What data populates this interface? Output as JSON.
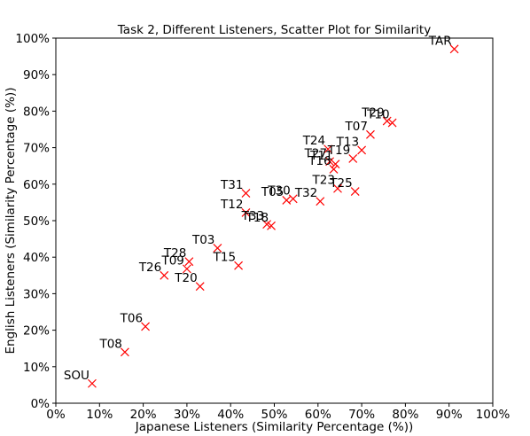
{
  "chart_data": {
    "type": "scatter",
    "title": "Task 2, Different Listeners, Scatter Plot for Similarity",
    "xlabel": "Japanese Listeners (Similarity Percentage (%))",
    "ylabel": "English Listeners (Similarity Percentage (%))",
    "xlim": [
      0,
      100
    ],
    "ylim": [
      0,
      100
    ],
    "xticks": [
      "0%",
      "10%",
      "20%",
      "30%",
      "40%",
      "50%",
      "60%",
      "70%",
      "80%",
      "90%",
      "100%"
    ],
    "yticks": [
      "0%",
      "10%",
      "20%",
      "30%",
      "40%",
      "50%",
      "60%",
      "70%",
      "80%",
      "90%",
      "100%"
    ],
    "marker": "x",
    "marker_color": "#ff0000",
    "grid": false,
    "points": [
      {
        "label": "TAR",
        "x": 91.2,
        "y": 97.0
      },
      {
        "label": "T29",
        "x": 75.8,
        "y": 77.3
      },
      {
        "label": "T10",
        "x": 77.0,
        "y": 76.8
      },
      {
        "label": "T07",
        "x": 72.0,
        "y": 73.6
      },
      {
        "label": "T13",
        "x": 70.0,
        "y": 69.3
      },
      {
        "label": "T24",
        "x": 62.3,
        "y": 69.6
      },
      {
        "label": "T19",
        "x": 68.0,
        "y": 67.0
      },
      {
        "label": "T27",
        "x": 62.7,
        "y": 66.2
      },
      {
        "label": "T11",
        "x": 64.0,
        "y": 65.5
      },
      {
        "label": "T16",
        "x": 63.6,
        "y": 64.1
      },
      {
        "label": "T23",
        "x": 64.5,
        "y": 58.8
      },
      {
        "label": "T25",
        "x": 68.5,
        "y": 58.0
      },
      {
        "label": "T31",
        "x": 43.5,
        "y": 57.5
      },
      {
        "label": "T32",
        "x": 60.5,
        "y": 55.3
      },
      {
        "label": "T30",
        "x": 54.3,
        "y": 56.0
      },
      {
        "label": "T05",
        "x": 52.8,
        "y": 55.6
      },
      {
        "label": "T12",
        "x": 43.5,
        "y": 52.2
      },
      {
        "label": "T33",
        "x": 48.3,
        "y": 49.0
      },
      {
        "label": "T18",
        "x": 49.3,
        "y": 48.6
      },
      {
        "label": "T03",
        "x": 37.0,
        "y": 42.5
      },
      {
        "label": "T15",
        "x": 41.8,
        "y": 37.7
      },
      {
        "label": "T28",
        "x": 30.5,
        "y": 38.8
      },
      {
        "label": "T09",
        "x": 30.0,
        "y": 36.8
      },
      {
        "label": "T26",
        "x": 24.8,
        "y": 35.0
      },
      {
        "label": "T20",
        "x": 33.0,
        "y": 32.0
      },
      {
        "label": "T06",
        "x": 20.5,
        "y": 21.0
      },
      {
        "label": "T08",
        "x": 15.8,
        "y": 14.0
      },
      {
        "label": "SOU",
        "x": 8.3,
        "y": 5.4
      }
    ]
  }
}
